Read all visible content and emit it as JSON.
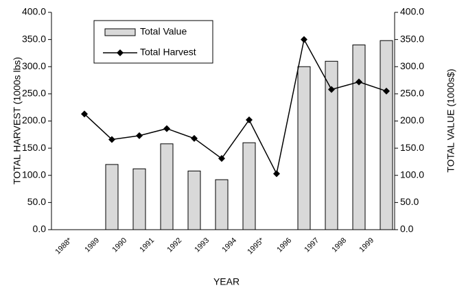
{
  "chart_data": {
    "type": "bar_line",
    "x_label": "YEAR",
    "y_label": "TOTAL HARVEST (1000s lbs)",
    "y2_label": "TOTAL VALUE (1000s$)",
    "categories": [
      "1988*",
      "1989",
      "1990",
      "1991",
      "1992",
      "1993",
      "1994",
      "1995*",
      "1996",
      "1997",
      "1998",
      "1999"
    ],
    "series": [
      {
        "name": "Total Value",
        "type": "bar",
        "axis": "y2",
        "color": "#d9d9d9",
        "values": [
          null,
          120,
          112,
          158,
          108,
          92,
          160,
          null,
          300,
          310,
          340,
          348
        ]
      },
      {
        "name": "Total Harvest",
        "type": "line",
        "axis": "y",
        "color": "#000000",
        "values": [
          213,
          166,
          173,
          186,
          168,
          131,
          202,
          103,
          350,
          258,
          272,
          255
        ]
      }
    ],
    "ylim": [
      0,
      400
    ],
    "yticks": [
      {
        "value": 0,
        "label": "0.0"
      },
      {
        "value": 50,
        "label": "50.0"
      },
      {
        "value": 100,
        "label": "100.0"
      },
      {
        "value": 150,
        "label": "150.0"
      },
      {
        "value": 200,
        "label": "200.0"
      },
      {
        "value": 250,
        "label": "250.0"
      },
      {
        "value": 300,
        "label": "300.0"
      },
      {
        "value": 350,
        "label": "350.0"
      },
      {
        "value": 400,
        "label": "400.0"
      }
    ],
    "y2lim": [
      0,
      400
    ],
    "y2ticks": [
      {
        "value": 0,
        "label": "0.0"
      },
      {
        "value": 50,
        "label": "50.0"
      },
      {
        "value": 100,
        "label": "100.0"
      },
      {
        "value": 150,
        "label": "150.0"
      },
      {
        "value": 200,
        "label": "200.0"
      },
      {
        "value": 250,
        "label": "250.0"
      },
      {
        "value": 300,
        "label": "300.0"
      },
      {
        "value": 350,
        "label": "350.0"
      },
      {
        "value": 400,
        "label": "400.0"
      }
    ],
    "legend": "upper left"
  }
}
